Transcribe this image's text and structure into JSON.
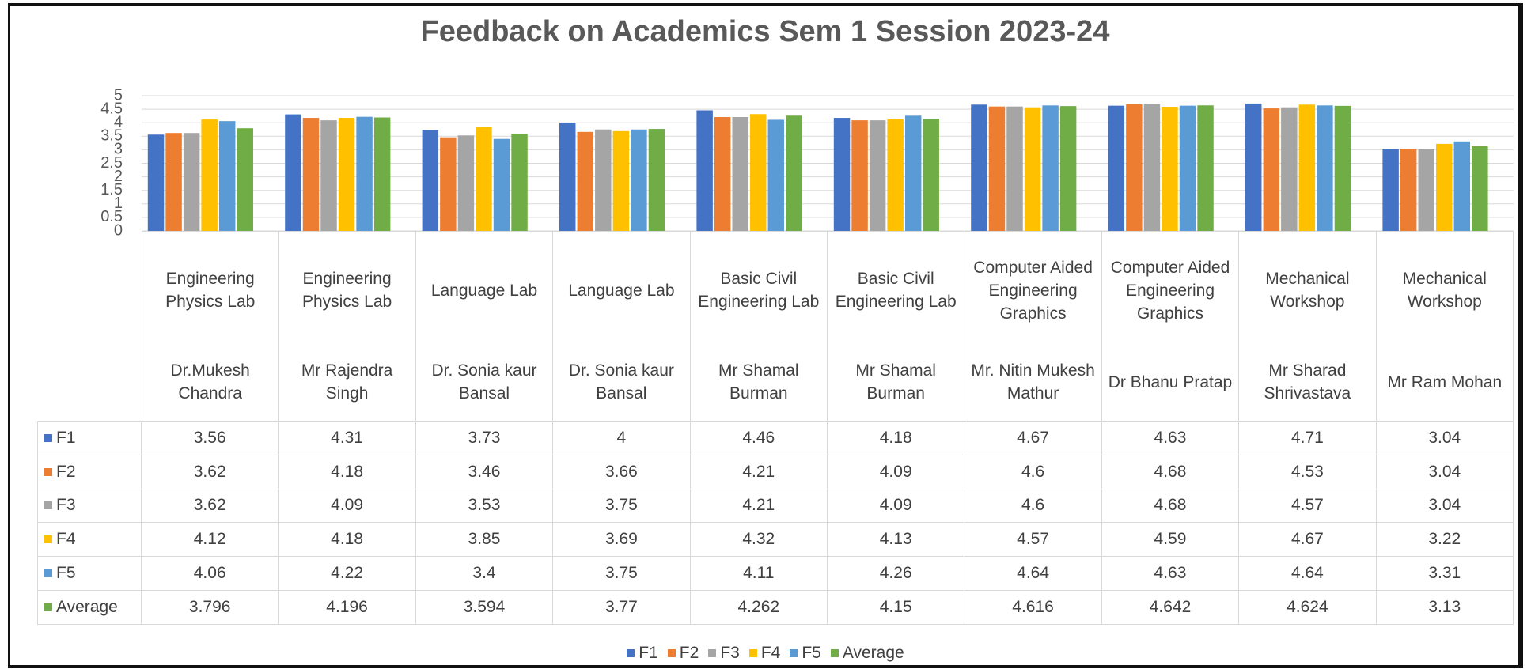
{
  "chart_data": {
    "type": "bar",
    "title": "Feedback on Academics Sem 1 Session 2023-24",
    "categories": [
      "Engineering Physics Lab",
      "Engineering Physics Lab",
      "Language Lab",
      "Language Lab",
      "Basic Civil Engineering Lab",
      "Basic Civil Engineering Lab",
      "Computer Aided Engineering Graphics",
      "Computer Aided Engineering Graphics",
      "Mechanical Workshop",
      "Mechanical Workshop"
    ],
    "teachers": [
      "Dr.Mukesh Chandra",
      "Mr Rajendra Singh",
      "Dr. Sonia kaur Bansal",
      "Dr. Sonia kaur Bansal",
      "Mr Shamal Burman",
      "Mr Shamal Burman",
      "Mr. Nitin Mukesh Mathur",
      "Dr Bhanu Pratap",
      "Mr Sharad Shrivastava",
      "Mr Ram Mohan"
    ],
    "series": [
      {
        "name": "F1",
        "color": "#4472c4",
        "values": [
          3.56,
          4.31,
          3.73,
          4,
          4.46,
          4.18,
          4.67,
          4.63,
          4.71,
          3.04
        ]
      },
      {
        "name": "F2",
        "color": "#ed7d31",
        "values": [
          3.62,
          4.18,
          3.46,
          3.66,
          4.21,
          4.09,
          4.6,
          4.68,
          4.53,
          3.04
        ]
      },
      {
        "name": "F3",
        "color": "#a5a5a5",
        "values": [
          3.62,
          4.09,
          3.53,
          3.75,
          4.21,
          4.09,
          4.6,
          4.68,
          4.57,
          3.04
        ]
      },
      {
        "name": "F4",
        "color": "#ffc000",
        "values": [
          4.12,
          4.18,
          3.85,
          3.69,
          4.32,
          4.13,
          4.57,
          4.59,
          4.67,
          3.22
        ]
      },
      {
        "name": "F5",
        "color": "#5b9bd5",
        "values": [
          4.06,
          4.22,
          3.4,
          3.75,
          4.11,
          4.26,
          4.64,
          4.63,
          4.64,
          3.31
        ]
      },
      {
        "name": "Average",
        "color": "#70ad47",
        "values": [
          3.796,
          4.196,
          3.594,
          3.77,
          4.262,
          4.15,
          4.616,
          4.642,
          4.624,
          3.13
        ]
      }
    ],
    "ylim": [
      0,
      5
    ],
    "yticks": [
      0,
      0.5,
      1,
      1.5,
      2,
      2.5,
      3,
      3.5,
      4,
      4.5,
      5
    ],
    "grid": true,
    "legend": "bottom"
  }
}
